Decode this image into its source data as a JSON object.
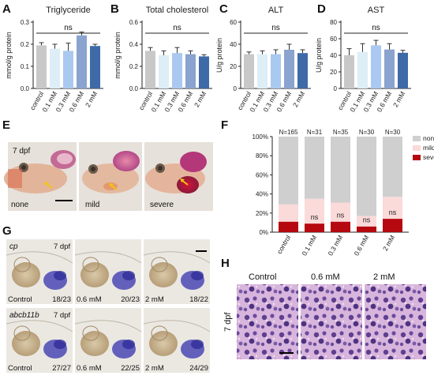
{
  "panel_letters": {
    "A": "A",
    "B": "B",
    "C": "C",
    "D": "D",
    "E": "E",
    "F": "F",
    "G": "G",
    "H": "H"
  },
  "categories": [
    "control",
    "0.1 mM",
    "0.3 mM",
    "0.6 mM",
    "2 mM"
  ],
  "bar_colors": [
    "#c8c8c8",
    "#ddeef6",
    "#a9c9f0",
    "#8aa3cf",
    "#3e6aa8"
  ],
  "chart_data": [
    {
      "type": "bar",
      "panel": "A",
      "title": "Triglyceride",
      "ylabel": "mmol/g protein",
      "ylim": [
        0,
        0.3
      ],
      "yticks": [
        "0.0",
        "0.1",
        "0.2",
        "0.3"
      ],
      "ytick_values": [
        0,
        0.1,
        0.2,
        0.3
      ],
      "categories": [
        "control",
        "0.1 mM",
        "0.3 mM",
        "0.6 mM",
        "2 mM"
      ],
      "values": [
        0.195,
        0.18,
        0.17,
        0.24,
        0.192
      ],
      "errors": [
        0.012,
        0.02,
        0.035,
        0.015,
        0.008
      ],
      "annotation": "ns"
    },
    {
      "type": "bar",
      "panel": "B",
      "title": "Total cholesterol",
      "ylabel": "mmol/g protein",
      "ylim": [
        0,
        0.6
      ],
      "yticks": [
        "0.0",
        "0.2",
        "0.4",
        "0.6"
      ],
      "ytick_values": [
        0,
        0.2,
        0.4,
        0.6
      ],
      "categories": [
        "control",
        "0.1 mM",
        "0.3 mM",
        "0.6 mM",
        "2 mM"
      ],
      "values": [
        0.34,
        0.3,
        0.32,
        0.31,
        0.29
      ],
      "errors": [
        0.03,
        0.04,
        0.05,
        0.03,
        0.015
      ],
      "annotation": "ns"
    },
    {
      "type": "bar",
      "panel": "C",
      "title": "ALT",
      "ylabel": "U/g protein",
      "ylim": [
        0,
        60
      ],
      "yticks": [
        "0",
        "20",
        "40",
        "60"
      ],
      "ytick_values": [
        0,
        20,
        40,
        60
      ],
      "categories": [
        "control",
        "0.1 mM",
        "0.3 mM",
        "0.6 mM",
        "2 mM"
      ],
      "values": [
        31,
        31,
        31,
        35,
        32
      ],
      "errors": [
        2,
        3,
        4,
        5,
        3
      ],
      "annotation": "ns"
    },
    {
      "type": "bar",
      "panel": "D",
      "title": "AST",
      "ylabel": "U/g protein",
      "ylim": [
        0,
        80
      ],
      "yticks": [
        "0",
        "20",
        "40",
        "60",
        "80"
      ],
      "ytick_values": [
        0,
        20,
        40,
        60,
        80
      ],
      "categories": [
        "control",
        "0.1 mM",
        "0.3 mM",
        "0.6 mM",
        "2 mM"
      ],
      "values": [
        40,
        44,
        52,
        47,
        43
      ],
      "errors": [
        8,
        10,
        6,
        7,
        3
      ],
      "annotation": "ns"
    },
    {
      "type": "bar",
      "stacked": true,
      "panel": "F",
      "categories": [
        "control",
        "0.1 mM",
        "0.3 mM",
        "0.6 mM",
        "2 mM"
      ],
      "n_labels": [
        "N=165",
        "N=31",
        "N=35",
        "N=30",
        "N=30"
      ],
      "ylim": [
        0,
        100
      ],
      "yticks": [
        "0%",
        "20%",
        "40%",
        "60%",
        "80%",
        "100%"
      ],
      "ytick_values": [
        0,
        20,
        40,
        60,
        80,
        100
      ],
      "series": [
        {
          "name": "severe",
          "color": "#b5080f",
          "values": [
            11,
            9,
            11,
            6,
            14
          ]
        },
        {
          "name": "mild",
          "color": "#fbdada",
          "values": [
            18,
            26,
            20,
            11,
            23
          ]
        },
        {
          "name": "none",
          "color": "#cfcfcf",
          "values": [
            71,
            65,
            69,
            83,
            63
          ]
        }
      ],
      "ns_labels": [
        "",
        "ns",
        "ns",
        "ns",
        "ns"
      ],
      "legend": [
        "none",
        "mild",
        "severe"
      ],
      "legend_position": "top-right"
    }
  ],
  "panel_e": {
    "stage": "7 dpf",
    "captions": [
      "none",
      "mild",
      "severe"
    ]
  },
  "panel_g": {
    "row1": {
      "gene": "cp",
      "stage": "7 dpf",
      "captions": [
        "Control",
        "0.6 mM",
        "2 mM"
      ],
      "ratios": [
        "18/23",
        "20/23",
        "18/22"
      ]
    },
    "row2": {
      "gene": "abcb11b",
      "stage": "7 dpf",
      "captions": [
        "Control",
        "0.6 mM",
        "2 mM"
      ],
      "ratios": [
        "27/27",
        "22/25",
        "24/29"
      ]
    }
  },
  "panel_h": {
    "titles": [
      "Control",
      "0.6 mM",
      "2 mM"
    ],
    "side_label": "7 dpf"
  }
}
